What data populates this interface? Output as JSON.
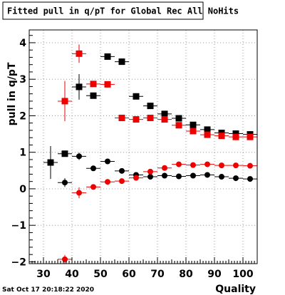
{
  "title": "Fitted pull in q/pT for Global Rec All NoHits",
  "timestamp": "Sat Oct 17 20:18:22 2020",
  "colors": {
    "red": "#ee0000",
    "black": "#000000",
    "grid": "#9a9a9a"
  },
  "chart_data": {
    "type": "scatter",
    "title": "Fitted pull in q/pT for Global Rec All NoHits",
    "xlabel": "Quality",
    "ylabel": "pull in q/pT",
    "xlim": [
      25,
      105
    ],
    "ylim": [
      -2.05,
      4.35
    ],
    "x_ticks": [
      30,
      40,
      50,
      60,
      70,
      80,
      90,
      100
    ],
    "x_tick_labels": [
      "30",
      "40",
      "50",
      "60",
      "70",
      "80",
      "90",
      "100"
    ],
    "y_ticks": [
      -2,
      -1,
      0,
      1,
      2,
      3,
      4
    ],
    "y_tick_labels": [
      "−2",
      "−1",
      "0",
      "1",
      "2",
      "3",
      "4"
    ],
    "grid": true,
    "series": [
      {
        "color": "black",
        "marker": "square",
        "points": [
          {
            "x": 32.5,
            "y": 0.72,
            "yerr": 0.45
          },
          {
            "x": 37.5,
            "y": 0.96,
            "yerr": 0.05
          },
          {
            "x": 42.5,
            "y": 2.79,
            "yerr": 0.35
          },
          {
            "x": 47.5,
            "y": 2.55,
            "yerr": 0.05
          },
          {
            "x": 52.5,
            "y": 3.62,
            "yerr": 0.05
          },
          {
            "x": 57.5,
            "y": 3.48,
            "yerr": 0.05
          },
          {
            "x": 62.5,
            "y": 2.53,
            "yerr": 0.05
          },
          {
            "x": 67.5,
            "y": 2.27,
            "yerr": 0.05
          },
          {
            "x": 72.5,
            "y": 2.05,
            "yerr": 0.05
          },
          {
            "x": 77.5,
            "y": 1.93,
            "yerr": 0.05
          },
          {
            "x": 82.5,
            "y": 1.75,
            "yerr": 0.05
          },
          {
            "x": 87.5,
            "y": 1.62,
            "yerr": 0.05
          },
          {
            "x": 92.5,
            "y": 1.53,
            "yerr": 0.05
          },
          {
            "x": 97.5,
            "y": 1.51,
            "yerr": 0.05
          },
          {
            "x": 102.5,
            "y": 1.49,
            "yerr": 0.05
          }
        ]
      },
      {
        "color": "red",
        "marker": "square",
        "points": [
          {
            "x": 37.5,
            "y": 2.4,
            "yerr": 0.55
          },
          {
            "x": 42.5,
            "y": 3.7,
            "yerr": 0.25
          },
          {
            "x": 47.5,
            "y": 2.87,
            "yerr": 0.05
          },
          {
            "x": 52.5,
            "y": 2.86,
            "yerr": 0.05
          },
          {
            "x": 57.5,
            "y": 1.94,
            "yerr": 0.05
          },
          {
            "x": 62.5,
            "y": 1.9,
            "yerr": 0.05
          },
          {
            "x": 67.5,
            "y": 1.94,
            "yerr": 0.05
          },
          {
            "x": 72.5,
            "y": 1.9,
            "yerr": 0.05
          },
          {
            "x": 77.5,
            "y": 1.74,
            "yerr": 0.05
          },
          {
            "x": 82.5,
            "y": 1.58,
            "yerr": 0.05
          },
          {
            "x": 87.5,
            "y": 1.48,
            "yerr": 0.05
          },
          {
            "x": 92.5,
            "y": 1.45,
            "yerr": 0.05
          },
          {
            "x": 97.5,
            "y": 1.42,
            "yerr": 0.05
          },
          {
            "x": 102.5,
            "y": 1.42,
            "yerr": 0.05
          }
        ]
      },
      {
        "color": "black",
        "marker": "circle",
        "points": [
          {
            "x": 37.5,
            "y": 0.17,
            "yerr": 0.12
          },
          {
            "x": 42.5,
            "y": 0.89,
            "yerr": 0.1
          },
          {
            "x": 47.5,
            "y": 0.56,
            "yerr": 0.04
          },
          {
            "x": 52.5,
            "y": 0.75,
            "yerr": 0.04
          },
          {
            "x": 57.5,
            "y": 0.49,
            "yerr": 0.03
          },
          {
            "x": 62.5,
            "y": 0.38,
            "yerr": 0.03
          },
          {
            "x": 67.5,
            "y": 0.33,
            "yerr": 0.03
          },
          {
            "x": 72.5,
            "y": 0.36,
            "yerr": 0.03
          },
          {
            "x": 77.5,
            "y": 0.34,
            "yerr": 0.03
          },
          {
            "x": 82.5,
            "y": 0.36,
            "yerr": 0.03
          },
          {
            "x": 87.5,
            "y": 0.38,
            "yerr": 0.03
          },
          {
            "x": 92.5,
            "y": 0.33,
            "yerr": 0.03
          },
          {
            "x": 97.5,
            "y": 0.29,
            "yerr": 0.03
          },
          {
            "x": 102.5,
            "y": 0.27,
            "yerr": 0.03
          }
        ]
      },
      {
        "color": "red",
        "marker": "circle",
        "points": [
          {
            "x": 37.5,
            "y": -1.93,
            "yerr": 0.12
          },
          {
            "x": 42.5,
            "y": -0.11,
            "yerr": 0.15
          },
          {
            "x": 47.5,
            "y": 0.05,
            "yerr": 0.05
          },
          {
            "x": 52.5,
            "y": 0.19,
            "yerr": 0.04
          },
          {
            "x": 57.5,
            "y": 0.21,
            "yerr": 0.04
          },
          {
            "x": 62.5,
            "y": 0.3,
            "yerr": 0.03
          },
          {
            "x": 67.5,
            "y": 0.47,
            "yerr": 0.03
          },
          {
            "x": 72.5,
            "y": 0.57,
            "yerr": 0.03
          },
          {
            "x": 77.5,
            "y": 0.67,
            "yerr": 0.03
          },
          {
            "x": 82.5,
            "y": 0.65,
            "yerr": 0.03
          },
          {
            "x": 87.5,
            "y": 0.67,
            "yerr": 0.03
          },
          {
            "x": 92.5,
            "y": 0.64,
            "yerr": 0.03
          },
          {
            "x": 97.5,
            "y": 0.64,
            "yerr": 0.03
          },
          {
            "x": 102.5,
            "y": 0.63,
            "yerr": 0.03
          }
        ]
      }
    ]
  }
}
